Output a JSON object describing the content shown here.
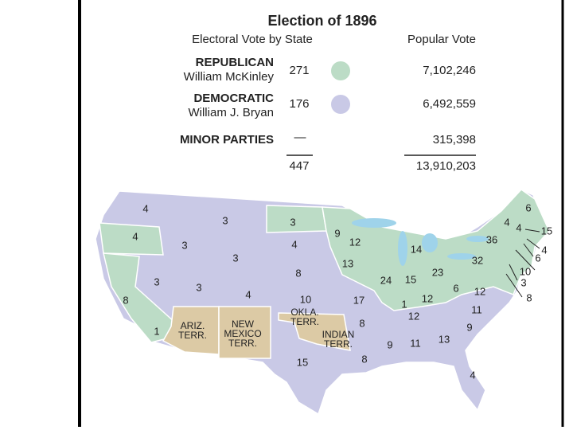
{
  "header": {
    "title": "Election of 1896",
    "electoral_heading": "Electoral Vote by State",
    "popular_heading": "Popular Vote"
  },
  "legend": {
    "parties": [
      {
        "party": "REPUBLICAN",
        "candidate": "William McKinley",
        "electoral": "271",
        "popular": "7,102,246"
      },
      {
        "party": "DEMOCRATIC",
        "candidate": "William J. Bryan",
        "electoral": "176",
        "popular": "6,492,559"
      }
    ],
    "minor": {
      "party": "MINOR PARTIES",
      "electoral": "—",
      "popular": "315,398"
    },
    "total": {
      "electoral": "447",
      "popular": "13,910,203"
    }
  },
  "map": {
    "state_labels": [
      "4",
      "4",
      "8",
      "1",
      "3",
      "3",
      "3",
      "3",
      "3",
      "4",
      "3",
      "4",
      "8",
      "10",
      "9",
      "13",
      "17",
      "12",
      "24",
      "14",
      "15",
      "1",
      "23",
      "12",
      "6",
      "32",
      "36",
      "12",
      "11",
      "9",
      "13",
      "11",
      "9",
      "8",
      "8",
      "12",
      "15",
      "4",
      "6",
      "4",
      "4",
      "15",
      "4",
      "6",
      "10",
      "3",
      "8"
    ],
    "territories": [
      {
        "lines": [
          "ARIZ.",
          "TERR."
        ]
      },
      {
        "lines": [
          "NEW",
          "MEXICO",
          "TERR."
        ]
      },
      {
        "lines": [
          "OKLA.",
          "TERR."
        ]
      },
      {
        "lines": [
          "INDIAN",
          "TERR."
        ]
      }
    ]
  }
}
